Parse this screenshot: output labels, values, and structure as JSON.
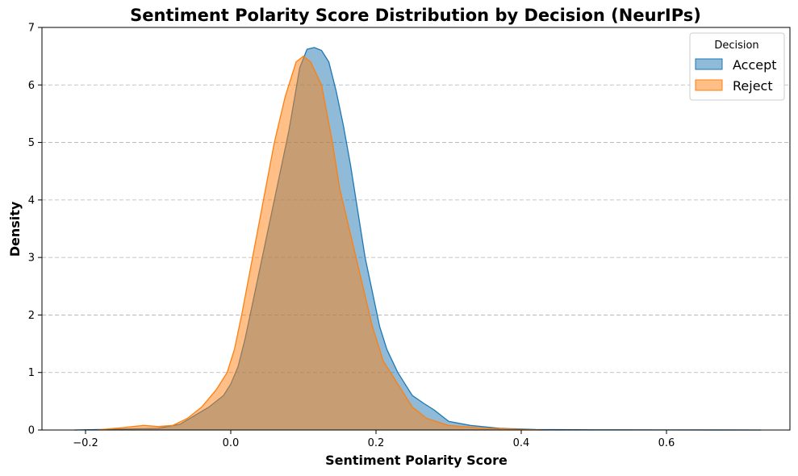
{
  "chart_data": {
    "type": "area",
    "title": "Sentiment Polarity Score Distribution by Decision (NeurIPs)",
    "xlabel": "Sentiment Polarity Score",
    "ylabel": "Density",
    "xlim": [
      -0.26,
      0.77
    ],
    "ylim": [
      0,
      7
    ],
    "x_ticks": [
      -0.2,
      0.0,
      0.2,
      0.4,
      0.6
    ],
    "x_tick_labels": [
      "−0.2",
      "0.0",
      "0.2",
      "0.4",
      "0.6"
    ],
    "y_ticks": [
      0,
      1,
      2,
      3,
      4,
      5,
      6,
      7
    ],
    "y_tick_labels": [
      "0",
      "1",
      "2",
      "3",
      "4",
      "5",
      "6",
      "7"
    ],
    "grid": "y-dashed",
    "legend": {
      "title": "Decision",
      "placement": "top-right"
    },
    "series": [
      {
        "name": "Accept",
        "color": "#1f77b4",
        "points": [
          [
            -0.215,
            0.0
          ],
          [
            -0.1,
            0.03
          ],
          [
            -0.07,
            0.1
          ],
          [
            -0.05,
            0.25
          ],
          [
            -0.03,
            0.4
          ],
          [
            -0.01,
            0.6
          ],
          [
            0.0,
            0.8
          ],
          [
            0.01,
            1.1
          ],
          [
            0.02,
            1.6
          ],
          [
            0.04,
            2.8
          ],
          [
            0.06,
            4.0
          ],
          [
            0.08,
            5.2
          ],
          [
            0.095,
            6.3
          ],
          [
            0.105,
            6.62
          ],
          [
            0.115,
            6.65
          ],
          [
            0.125,
            6.6
          ],
          [
            0.135,
            6.4
          ],
          [
            0.145,
            5.9
          ],
          [
            0.155,
            5.3
          ],
          [
            0.165,
            4.6
          ],
          [
            0.175,
            3.8
          ],
          [
            0.185,
            3.0
          ],
          [
            0.195,
            2.4
          ],
          [
            0.205,
            1.8
          ],
          [
            0.215,
            1.4
          ],
          [
            0.23,
            1.0
          ],
          [
            0.25,
            0.6
          ],
          [
            0.265,
            0.47
          ],
          [
            0.28,
            0.35
          ],
          [
            0.3,
            0.15
          ],
          [
            0.33,
            0.08
          ],
          [
            0.37,
            0.03
          ],
          [
            0.42,
            0.008
          ],
          [
            0.5,
            0.003
          ],
          [
            0.6,
            0.002
          ],
          [
            0.73,
            0.0
          ]
        ]
      },
      {
        "name": "Reject",
        "color": "#ff7f0e",
        "points": [
          [
            -0.185,
            0.0
          ],
          [
            -0.15,
            0.04
          ],
          [
            -0.12,
            0.08
          ],
          [
            -0.1,
            0.06
          ],
          [
            -0.08,
            0.08
          ],
          [
            -0.06,
            0.2
          ],
          [
            -0.04,
            0.4
          ],
          [
            -0.02,
            0.7
          ],
          [
            -0.005,
            1.0
          ],
          [
            0.005,
            1.4
          ],
          [
            0.015,
            2.0
          ],
          [
            0.03,
            3.0
          ],
          [
            0.045,
            4.0
          ],
          [
            0.06,
            5.0
          ],
          [
            0.075,
            5.8
          ],
          [
            0.09,
            6.4
          ],
          [
            0.1,
            6.5
          ],
          [
            0.11,
            6.4
          ],
          [
            0.125,
            6.0
          ],
          [
            0.14,
            5.0
          ],
          [
            0.15,
            4.2
          ],
          [
            0.165,
            3.4
          ],
          [
            0.18,
            2.6
          ],
          [
            0.195,
            1.8
          ],
          [
            0.21,
            1.2
          ],
          [
            0.23,
            0.8
          ],
          [
            0.25,
            0.4
          ],
          [
            0.27,
            0.2
          ],
          [
            0.3,
            0.08
          ],
          [
            0.35,
            0.03
          ],
          [
            0.4,
            0.008
          ],
          [
            0.43,
            0.0
          ]
        ]
      }
    ]
  }
}
